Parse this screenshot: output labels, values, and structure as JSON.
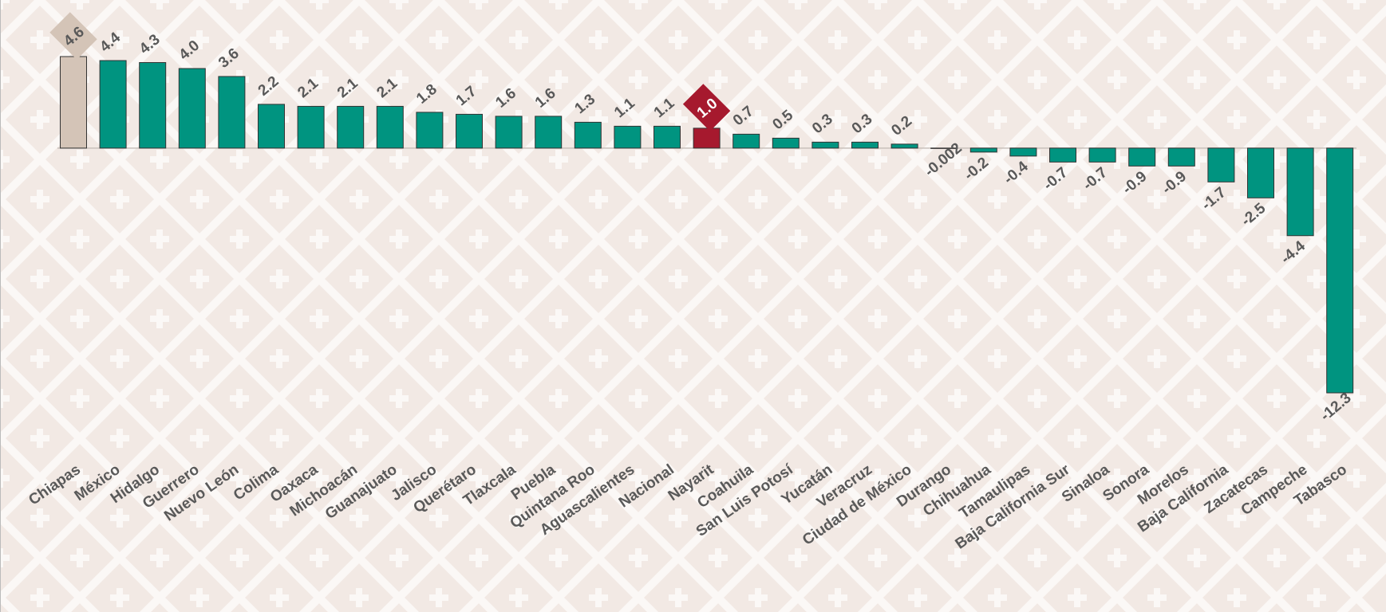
{
  "chart_data": {
    "type": "bar",
    "categories": [
      "Chiapas",
      "México",
      "Hidalgo",
      "Guerrero",
      "Nuevo León",
      "Colima",
      "Oaxaca",
      "Michoacán",
      "Guanajuato",
      "Jalisco",
      "Querétaro",
      "Tlaxcala",
      "Puebla",
      "Quintana Roo",
      "Aguascalientes",
      "Nacional",
      "Nayarit",
      "Coahuila",
      "San Luis Potosí",
      "Yucatán",
      "Veracruz",
      "Ciudad de México",
      "Durango",
      "Chihuahua",
      "Tamaulipas",
      "Baja California Sur",
      "Sinaloa",
      "Sonora",
      "Morelos",
      "Baja California",
      "Zacatecas",
      "Campeche",
      "Tabasco"
    ],
    "values": [
      4.6,
      4.4,
      4.3,
      4.0,
      3.6,
      2.2,
      2.1,
      2.1,
      2.1,
      1.8,
      1.7,
      1.6,
      1.6,
      1.3,
      1.1,
      1.1,
      1.0,
      0.7,
      0.5,
      0.3,
      0.3,
      0.2,
      -0.002,
      -0.2,
      -0.4,
      -0.7,
      -0.7,
      -0.9,
      -0.9,
      -1.7,
      -2.5,
      -4.4,
      -12.3
    ],
    "value_labels": [
      "4.6",
      "4.4",
      "4.3",
      "4.0",
      "3.6",
      "2.2",
      "2.1",
      "2.1",
      "2.1",
      "1.8",
      "1.7",
      "1.6",
      "1.6",
      "1.3",
      "1.1",
      "1.1",
      "1.0",
      "0.7",
      "0.5",
      "0.3",
      "0.3",
      "0.2",
      "-0.002",
      "-0.2",
      "-0.4",
      "-0.7",
      "-0.7",
      "-0.9",
      "-0.9",
      "-1.7",
      "-2.5",
      "-4.4",
      "-12.3"
    ],
    "color": "#009480",
    "colors": [
      "#d4c4b7",
      "#009480",
      "#009480",
      "#009480",
      "#009480",
      "#009480",
      "#009480",
      "#009480",
      "#009480",
      "#009480",
      "#009480",
      "#009480",
      "#009480",
      "#009480",
      "#009480",
      "#009480",
      "#a6192e",
      "#009480",
      "#009480",
      "#009480",
      "#009480",
      "#009480",
      "#009480",
      "#009480",
      "#009480",
      "#009480",
      "#009480",
      "#009480",
      "#009480",
      "#009480",
      "#009480",
      "#009480",
      "#009480"
    ],
    "ylim": [
      -12.3,
      4.6
    ]
  }
}
